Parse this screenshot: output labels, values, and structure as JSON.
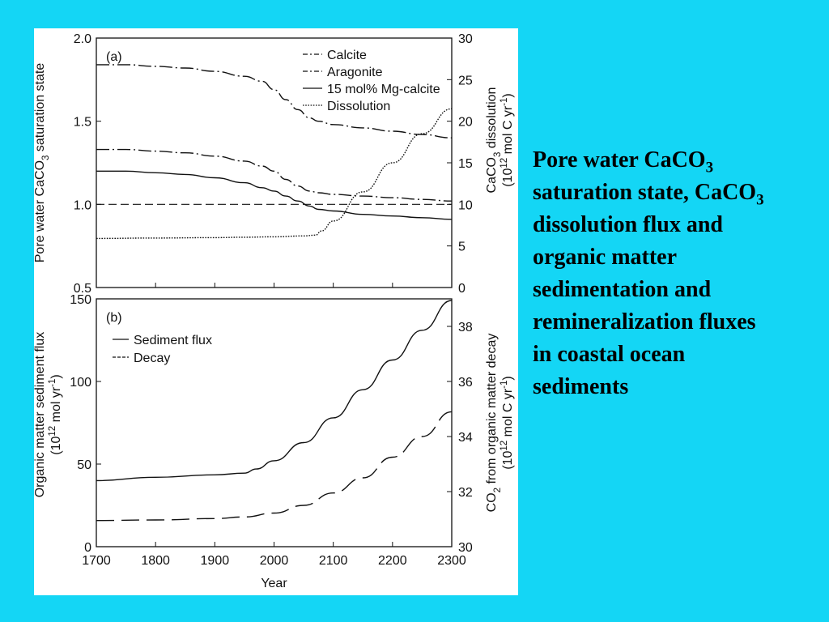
{
  "caption": {
    "line1_pre": "Pore water CaCO",
    "line1_sub": "3",
    "line2_pre": "saturation state, CaCO",
    "line2_sub": "3",
    "line3": "dissolution flux and",
    "line4": "organic matter",
    "line5": "sedimentation and",
    "line6": "remineralization fluxes",
    "line7": "in coastal ocean",
    "line8": "sediments"
  },
  "colors": {
    "background": "#14d6f5",
    "panel": "#ffffff",
    "ink": "#111111"
  },
  "chart_data": [
    {
      "type": "line",
      "panel_label": "(a)",
      "ylabel_left": [
        "Pore water CaCO",
        "3",
        " saturation state"
      ],
      "ylabel_right": [
        "CaCO",
        "3",
        " dissolution",
        "(10",
        "12",
        " mol C yr",
        "-1",
        ")"
      ],
      "xlim": [
        1700,
        2300
      ],
      "ylim_left": [
        0.5,
        2.0
      ],
      "ylim_right": [
        0,
        30
      ],
      "yticks_left": [
        "0.5",
        "1.0",
        "1.5",
        "2.0"
      ],
      "yticks_right": [
        "0",
        "5",
        "10",
        "15",
        "20",
        "25",
        "30"
      ],
      "reference_line": 1.0,
      "legend_position": "top-right",
      "series": [
        {
          "name": "Calcite",
          "axis": "left",
          "style": "dashdot",
          "x": [
            1700,
            1750,
            1800,
            1850,
            1900,
            1950,
            1980,
            2000,
            2020,
            2040,
            2060,
            2075,
            2100,
            2150,
            2200,
            2250,
            2300
          ],
          "y": [
            1.33,
            1.33,
            1.32,
            1.31,
            1.29,
            1.26,
            1.23,
            1.2,
            1.15,
            1.11,
            1.08,
            1.07,
            1.06,
            1.05,
            1.04,
            1.03,
            1.02
          ]
        },
        {
          "name": "Aragonite",
          "axis": "left",
          "style": "dashdot",
          "x": [
            1700,
            1750,
            1800,
            1850,
            1900,
            1950,
            1980,
            2000,
            2020,
            2040,
            2060,
            2075,
            2100,
            2150,
            2200,
            2250,
            2300
          ],
          "y": [
            1.84,
            1.84,
            1.83,
            1.82,
            1.8,
            1.77,
            1.74,
            1.69,
            1.63,
            1.57,
            1.52,
            1.5,
            1.48,
            1.46,
            1.44,
            1.42,
            1.4
          ]
        },
        {
          "name": "15 mol% Mg-calcite",
          "axis": "left",
          "style": "solid",
          "x": [
            1700,
            1750,
            1800,
            1850,
            1900,
            1950,
            1980,
            2000,
            2020,
            2040,
            2060,
            2075,
            2100,
            2150,
            2200,
            2250,
            2300
          ],
          "y": [
            1.2,
            1.2,
            1.19,
            1.18,
            1.16,
            1.13,
            1.1,
            1.08,
            1.05,
            1.02,
            0.99,
            0.97,
            0.96,
            0.94,
            0.93,
            0.92,
            0.91
          ]
        },
        {
          "name": "Dissolution",
          "axis": "right",
          "style": "dotted",
          "x": [
            1700,
            1800,
            1900,
            1950,
            2000,
            2050,
            2070,
            2080,
            2100,
            2150,
            2200,
            2250,
            2300
          ],
          "y": [
            5.9,
            5.95,
            6.0,
            6.05,
            6.1,
            6.2,
            6.3,
            6.8,
            8.0,
            11.5,
            15.0,
            18.5,
            21.5
          ]
        }
      ]
    },
    {
      "type": "line",
      "panel_label": "(b)",
      "xlabel": "Year",
      "ylabel_left": [
        "Organic matter sediment flux",
        "(10",
        "12",
        " mol yr",
        "-1",
        ")"
      ],
      "ylabel_right": [
        "CO",
        "2",
        " from organic matter decay",
        "(10",
        "12",
        " mol C yr",
        "-1",
        ")"
      ],
      "xlim": [
        1700,
        2300
      ],
      "ylim_left": [
        0,
        150
      ],
      "ylim_right": [
        30,
        39
      ],
      "xticks": [
        "1700",
        "1800",
        "1900",
        "2000",
        "2100",
        "2200",
        "2300"
      ],
      "yticks_left": [
        "0",
        "50",
        "100",
        "150"
      ],
      "yticks_right": [
        "30",
        "32",
        "34",
        "36",
        "38"
      ],
      "legend_position": "top-left",
      "series": [
        {
          "name": "Sediment flux",
          "axis": "left",
          "style": "solid",
          "x": [
            1700,
            1800,
            1900,
            1950,
            1970,
            2000,
            2050,
            2100,
            2150,
            2200,
            2250,
            2300
          ],
          "y": [
            40,
            42,
            43.5,
            44.5,
            47,
            52,
            63,
            78,
            95,
            113,
            131,
            149
          ]
        },
        {
          "name": "Decay",
          "axis": "right",
          "style": "dashed",
          "x": [
            1700,
            1800,
            1900,
            1950,
            2000,
            2050,
            2100,
            2150,
            2200,
            2250,
            2300
          ],
          "y": [
            30.95,
            30.97,
            31.02,
            31.08,
            31.22,
            31.5,
            31.95,
            32.5,
            33.25,
            34.0,
            34.9
          ]
        }
      ]
    }
  ]
}
